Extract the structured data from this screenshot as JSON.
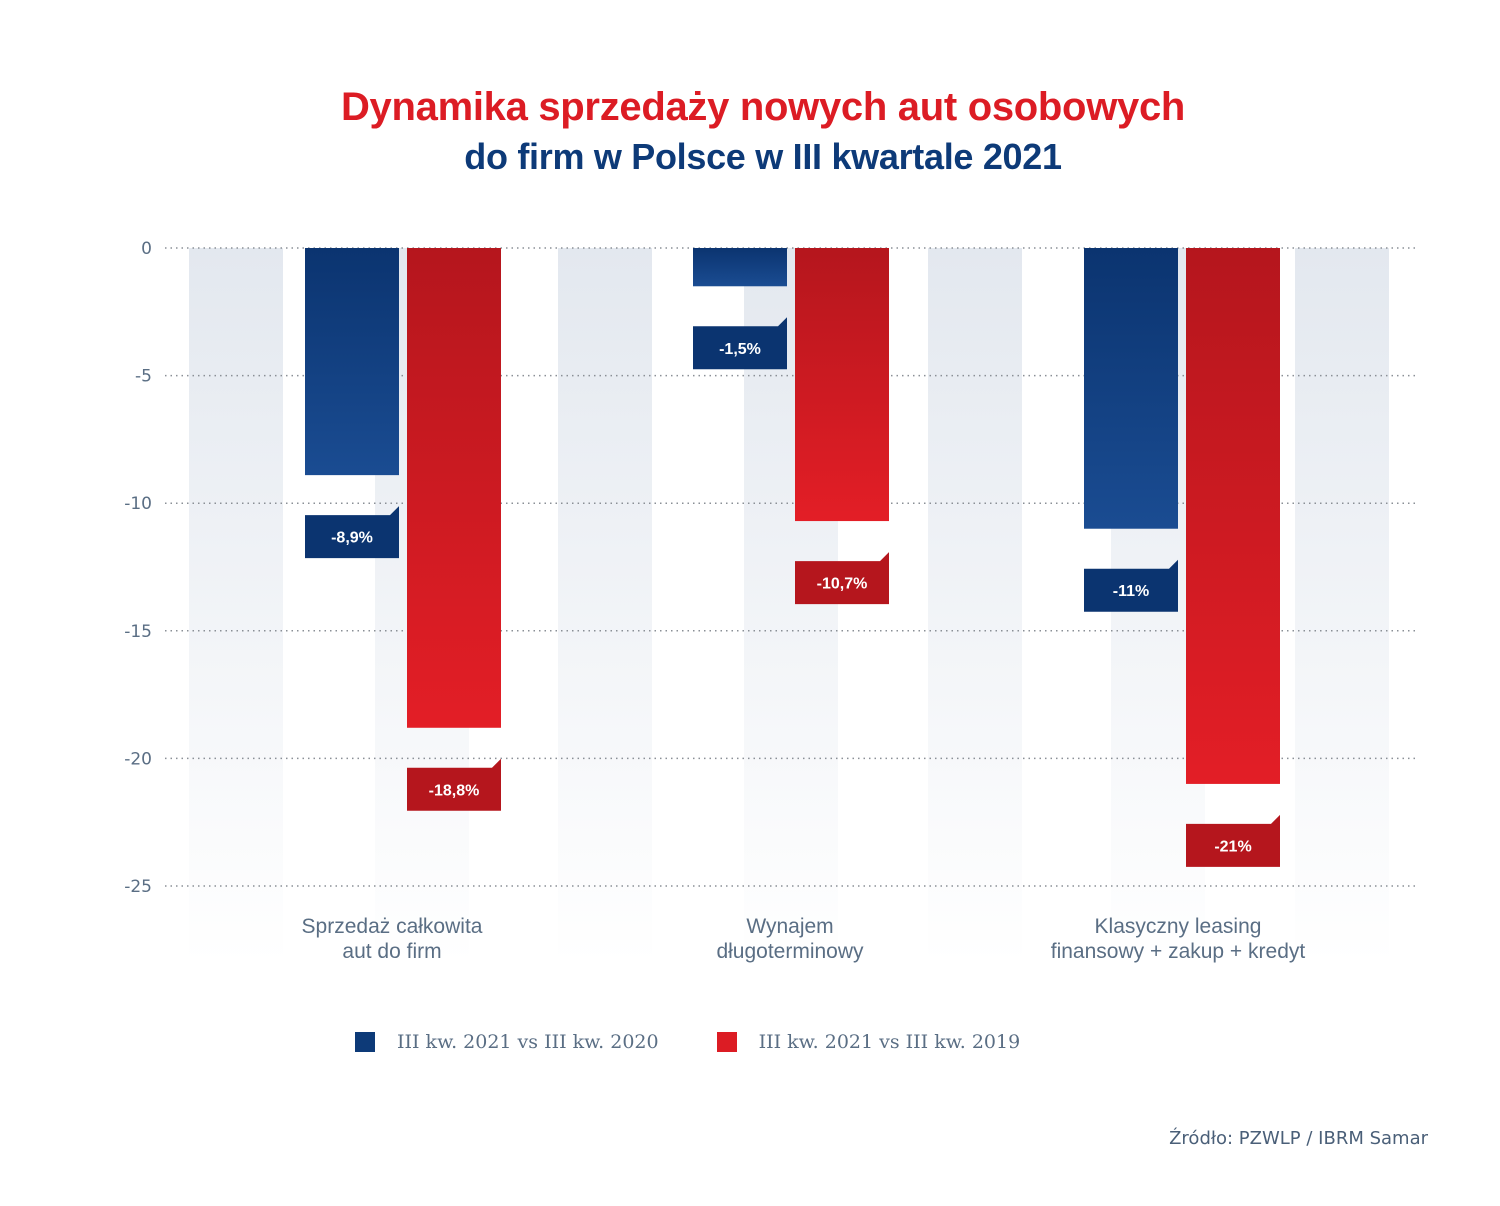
{
  "title": {
    "line1": "Dynamika sprzedaży nowych aut osobowych",
    "line2": "do firm w Polsce w III kwartale 2021"
  },
  "source": "Źródło: PZWLP / IBRM Samar",
  "colors": {
    "series_blue": "#0d3a78",
    "series_red": "#dc1c24",
    "axis_text": "#5a6e84",
    "gridline": "#8a8f96",
    "column_bg": "#e3e8ef"
  },
  "chart_data": {
    "type": "bar",
    "categories": [
      [
        "Sprzedaż całkowita",
        "aut do firm"
      ],
      [
        "Wynajem",
        "długoterminowy"
      ],
      [
        "Klasyczny leasing",
        "finansowy + zakup + kredyt"
      ]
    ],
    "series": [
      {
        "name": "III kw. 2021 vs III kw. 2020",
        "color": "#0d3a78",
        "values": [
          -8.9,
          -1.5,
          -11
        ],
        "labels": [
          "-8,9%",
          "-1,5%",
          "-11%"
        ]
      },
      {
        "name": "III kw. 2021 vs III kw. 2019",
        "color": "#dc1c24",
        "values": [
          -18.8,
          -10.7,
          -21
        ],
        "labels": [
          "-18,8%",
          "-10,7%",
          "-21%"
        ]
      }
    ],
    "y_ticks": [
      0,
      -5,
      -10,
      -15,
      -20,
      -25
    ],
    "ylim": [
      -25,
      0
    ],
    "grid": true,
    "legend_position": "bottom"
  }
}
